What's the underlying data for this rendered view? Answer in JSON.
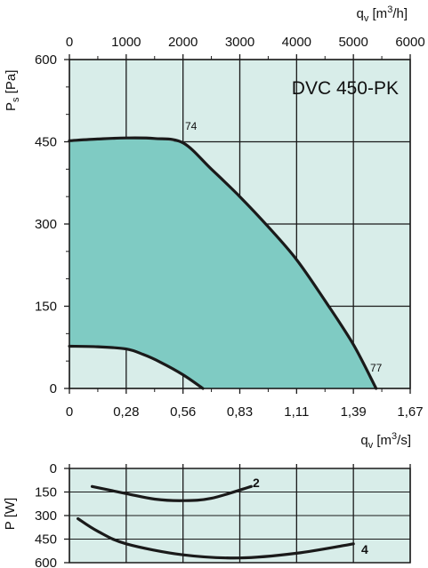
{
  "chart_data": [
    {
      "type": "area",
      "title": "DVC 450-PK",
      "ylabel": "Ps [Pa]",
      "ylabel_main": "P",
      "ylabel_sub": "s",
      "ylabel_unit": "[Pa]",
      "xlabel_top": "qv [m3/h]",
      "xlabel_bottom": "qv [m3/s]",
      "xlim_m3h": [
        0,
        6000
      ],
      "ylim": [
        0,
        600
      ],
      "x_ticks_top": [
        "0",
        "1000",
        "2000",
        "3000",
        "4000",
        "5000",
        "6000"
      ],
      "x_ticks_bottom": [
        "0",
        "0,28",
        "0,56",
        "0,83",
        "1,11",
        "1,39",
        "1,67"
      ],
      "y_ticks": [
        "600",
        "450",
        "300",
        "150",
        "0"
      ],
      "grid": true,
      "colors": {
        "background": "#d8ede9",
        "operating_area": "#7fcbc3",
        "curve": "#1a1a1a"
      },
      "series": [
        {
          "name": "74",
          "x": [
            0,
            500,
            1000,
            1500,
            2000,
            2500,
            3000,
            3500,
            4000,
            4500,
            5000,
            5400
          ],
          "y": [
            452,
            455,
            457,
            456,
            448,
            400,
            350,
            295,
            235,
            160,
            80,
            0
          ]
        },
        {
          "name": "77",
          "x": [
            0,
            500,
            1000,
            1300,
            1600,
            2000,
            2350
          ],
          "y": [
            77,
            76,
            72,
            62,
            48,
            25,
            0
          ]
        }
      ]
    },
    {
      "type": "line",
      "ylabel": "P [W]",
      "ylim": [
        0,
        600
      ],
      "y_ticks": [
        "0",
        "150",
        "300",
        "450",
        "600"
      ],
      "grid": true,
      "colors": {
        "background": "#d8ede9",
        "curve": "#1a1a1a"
      },
      "series": [
        {
          "name": "2",
          "x": [
            400,
            1000,
            1500,
            2000,
            2500,
            3200
          ],
          "y": [
            115,
            160,
            195,
            205,
            190,
            115
          ]
        },
        {
          "name": "4",
          "x": [
            150,
            500,
            1000,
            2000,
            3000,
            4000,
            5000
          ],
          "y": [
            320,
            400,
            480,
            550,
            570,
            540,
            480
          ]
        }
      ]
    }
  ]
}
